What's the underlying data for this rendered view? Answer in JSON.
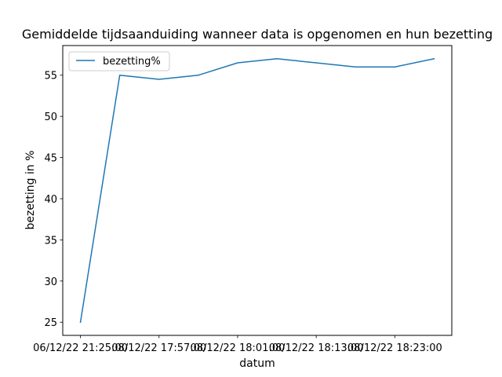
{
  "chart_data": {
    "type": "line",
    "title": "Gemiddelde tijdsaanduiding wanneer data is opgenomen en hun bezetting",
    "xlabel": "datum",
    "ylabel": "bezetting in %",
    "x_tick_labels": [
      "06/12/22 21:25:00",
      "08/12/22 17:57:00",
      "08/12/22 18:01:00",
      "08/12/22 18:13:00",
      "08/12/22 18:23:00"
    ],
    "x_tick_positions": [
      0,
      2,
      4,
      6,
      8
    ],
    "y_ticks": [
      25,
      30,
      35,
      40,
      45,
      50,
      55
    ],
    "ylim": [
      23.4,
      58.6
    ],
    "xlim": [
      -0.45,
      9.45
    ],
    "grid": false,
    "legend_position": "top-left",
    "series": [
      {
        "name": "bezetting%",
        "color": "#1f77b4",
        "x": [
          0,
          1,
          2,
          3,
          4,
          5,
          6,
          7,
          8,
          9
        ],
        "values": [
          25,
          55,
          54.5,
          55,
          56.5,
          57,
          56.5,
          56,
          56,
          57
        ]
      }
    ]
  }
}
